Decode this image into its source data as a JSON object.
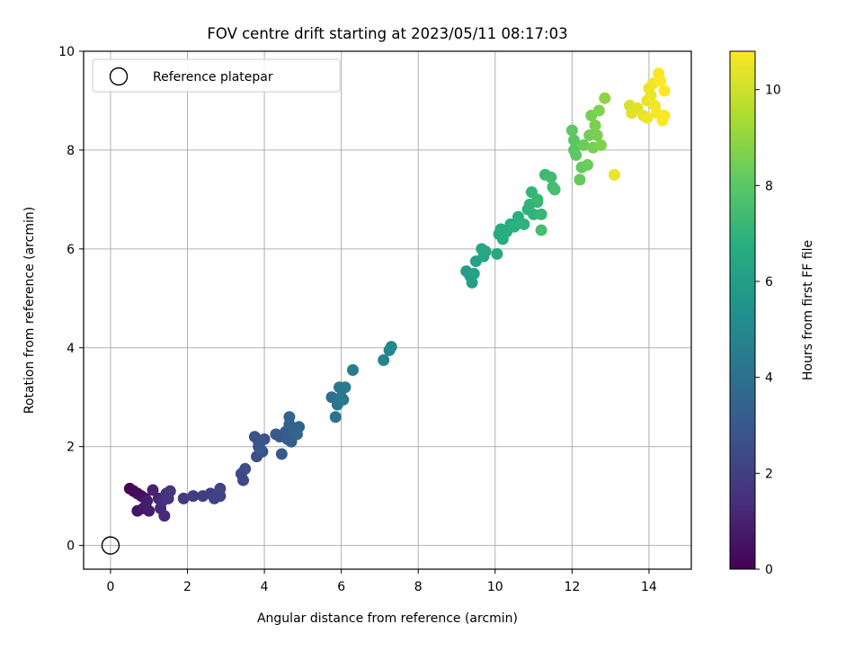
{
  "chart_data": {
    "type": "scatter",
    "title": "FOV centre drift starting at 2023/05/11 08:17:03",
    "xlabel": "Angular distance from reference (arcmin)",
    "ylabel": "Rotation from reference (arcmin)",
    "xlim": [
      -0.7,
      15.1
    ],
    "ylim": [
      -0.48,
      10.0
    ],
    "xticks": [
      0,
      2,
      4,
      6,
      8,
      10,
      12,
      14
    ],
    "yticks": [
      0,
      2,
      4,
      6,
      8,
      10
    ],
    "grid": true,
    "legend": {
      "location": "upper left",
      "entries": [
        "Reference platepar"
      ]
    },
    "reference_point": {
      "label": "Reference platepar",
      "x": 0,
      "y": 0
    },
    "colorbar": {
      "label": "Hours from first FF file",
      "colormap": "viridis",
      "range": [
        0,
        10.8
      ],
      "ticks": [
        0,
        2,
        4,
        6,
        8,
        10
      ]
    },
    "series": [
      {
        "columns": [
          "x",
          "y",
          "hours"
        ],
        "points": [
          [
            0.5,
            1.15,
            0.1
          ],
          [
            0.6,
            1.1,
            0.2
          ],
          [
            0.7,
            1.05,
            0.3
          ],
          [
            0.8,
            1.0,
            0.4
          ],
          [
            0.9,
            0.95,
            0.5
          ],
          [
            0.7,
            0.7,
            0.6
          ],
          [
            0.85,
            0.75,
            0.7
          ],
          [
            1.0,
            0.7,
            0.8
          ],
          [
            0.95,
            0.9,
            0.9
          ],
          [
            1.1,
            1.12,
            1.0
          ],
          [
            1.25,
            0.95,
            1.1
          ],
          [
            1.3,
            0.75,
            1.2
          ],
          [
            1.4,
            0.6,
            1.3
          ],
          [
            1.35,
            0.9,
            1.4
          ],
          [
            1.45,
            1.05,
            1.5
          ],
          [
            1.5,
            0.95,
            1.6
          ],
          [
            1.55,
            1.1,
            1.7
          ],
          [
            1.9,
            0.95,
            1.8
          ],
          [
            2.15,
            1.0,
            1.9
          ],
          [
            2.4,
            1.0,
            2.0
          ],
          [
            2.6,
            1.05,
            2.0
          ],
          [
            2.7,
            0.95,
            2.1
          ],
          [
            2.85,
            1.0,
            2.1
          ],
          [
            2.85,
            1.15,
            2.2
          ],
          [
            3.4,
            1.45,
            2.3
          ],
          [
            3.45,
            1.32,
            2.4
          ],
          [
            3.5,
            1.55,
            2.5
          ],
          [
            3.8,
            1.8,
            2.6
          ],
          [
            3.85,
            2.0,
            2.6
          ],
          [
            3.75,
            2.2,
            2.7
          ],
          [
            3.85,
            2.1,
            2.7
          ],
          [
            3.95,
            1.9,
            2.8
          ],
          [
            4.0,
            2.15,
            2.8
          ],
          [
            3.9,
            1.95,
            2.9
          ],
          [
            4.3,
            2.25,
            3.0
          ],
          [
            4.4,
            2.2,
            3.0
          ],
          [
            4.45,
            1.85,
            3.1
          ],
          [
            4.55,
            2.3,
            3.1
          ],
          [
            4.6,
            2.15,
            3.2
          ],
          [
            4.7,
            2.1,
            3.2
          ],
          [
            4.75,
            2.25,
            3.3
          ],
          [
            4.65,
            2.45,
            3.3
          ],
          [
            4.8,
            2.35,
            3.4
          ],
          [
            4.85,
            2.25,
            3.4
          ],
          [
            4.65,
            2.6,
            3.5
          ],
          [
            4.9,
            2.4,
            3.5
          ],
          [
            5.75,
            3.0,
            4.0
          ],
          [
            5.85,
            2.6,
            4.1
          ],
          [
            5.9,
            2.85,
            4.2
          ],
          [
            6.0,
            3.0,
            4.2
          ],
          [
            5.95,
            3.2,
            4.3
          ],
          [
            6.05,
            2.95,
            4.3
          ],
          [
            6.1,
            3.2,
            4.4
          ],
          [
            6.3,
            3.55,
            4.5
          ],
          [
            7.1,
            3.75,
            4.8
          ],
          [
            7.25,
            3.95,
            4.9
          ],
          [
            7.3,
            4.02,
            5.0
          ],
          [
            9.25,
            5.55,
            6.0
          ],
          [
            9.4,
            5.32,
            6.1
          ],
          [
            9.35,
            5.45,
            6.1
          ],
          [
            9.45,
            5.5,
            6.2
          ],
          [
            9.5,
            5.75,
            6.2
          ],
          [
            9.65,
            6.0,
            6.3
          ],
          [
            9.7,
            5.85,
            6.3
          ],
          [
            9.75,
            5.95,
            6.4
          ],
          [
            10.05,
            5.9,
            6.5
          ],
          [
            10.1,
            6.3,
            6.5
          ],
          [
            10.2,
            6.2,
            6.6
          ],
          [
            10.15,
            6.4,
            6.6
          ],
          [
            10.3,
            6.35,
            6.7
          ],
          [
            10.4,
            6.5,
            6.7
          ],
          [
            10.5,
            6.45,
            6.8
          ],
          [
            10.6,
            6.65,
            6.8
          ],
          [
            10.75,
            6.5,
            6.9
          ],
          [
            10.85,
            6.8,
            6.9
          ],
          [
            10.9,
            6.9,
            7.0
          ],
          [
            11.0,
            6.7,
            7.0
          ],
          [
            10.95,
            7.15,
            7.1
          ],
          [
            11.1,
            6.95,
            7.1
          ],
          [
            11.2,
            6.7,
            7.2
          ],
          [
            11.1,
            7.0,
            7.2
          ],
          [
            11.3,
            7.5,
            7.3
          ],
          [
            11.45,
            7.45,
            7.4
          ],
          [
            11.5,
            7.25,
            7.4
          ],
          [
            11.55,
            7.2,
            7.5
          ],
          [
            11.2,
            6.38,
            7.5
          ],
          [
            12.05,
            8.0,
            8.0
          ],
          [
            12.05,
            8.2,
            8.0
          ],
          [
            12.0,
            8.4,
            8.1
          ],
          [
            12.1,
            7.9,
            8.1
          ],
          [
            12.2,
            7.4,
            8.2
          ],
          [
            12.25,
            7.65,
            8.2
          ],
          [
            12.3,
            8.1,
            8.3
          ],
          [
            12.4,
            7.7,
            8.3
          ],
          [
            12.45,
            8.3,
            8.4
          ],
          [
            12.5,
            8.7,
            8.5
          ],
          [
            12.55,
            8.05,
            8.5
          ],
          [
            12.6,
            8.5,
            8.6
          ],
          [
            12.65,
            8.3,
            8.6
          ],
          [
            12.7,
            8.8,
            8.7
          ],
          [
            12.75,
            8.1,
            8.7
          ],
          [
            12.85,
            9.05,
            8.9
          ],
          [
            13.1,
            7.5,
            10.5
          ],
          [
            13.5,
            8.9,
            10.2
          ],
          [
            13.55,
            8.75,
            10.3
          ],
          [
            13.7,
            8.85,
            10.3
          ],
          [
            13.85,
            8.7,
            10.4
          ],
          [
            13.95,
            9.0,
            10.4
          ],
          [
            14.0,
            9.25,
            10.5
          ],
          [
            14.05,
            9.1,
            10.5
          ],
          [
            14.1,
            9.35,
            10.6
          ],
          [
            14.15,
            8.9,
            10.6
          ],
          [
            14.2,
            8.75,
            10.7
          ],
          [
            14.25,
            9.55,
            10.7
          ],
          [
            14.3,
            9.4,
            10.8
          ],
          [
            14.35,
            8.6,
            10.8
          ],
          [
            14.4,
            8.7,
            10.8
          ],
          [
            14.4,
            9.2,
            10.8
          ],
          [
            13.95,
            8.65,
            10.6
          ]
        ]
      }
    ]
  }
}
